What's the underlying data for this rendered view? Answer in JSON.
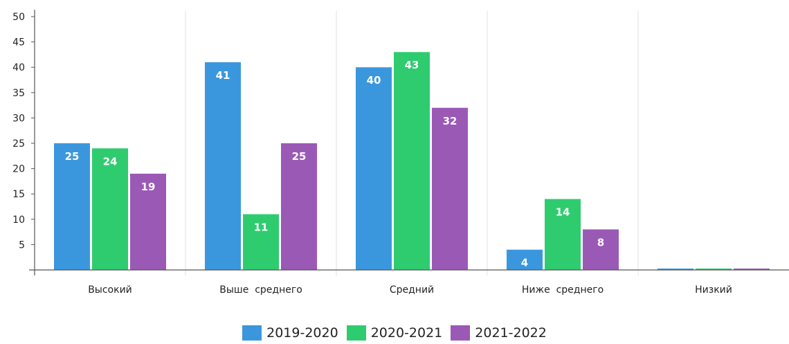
{
  "chart_data": {
    "type": "bar",
    "categories": [
      "Высокий",
      "Выше  среднего",
      "Средний",
      "Ниже  среднего",
      "Низкий"
    ],
    "series": [
      {
        "name": "2019-2020",
        "color": "#3a97dd",
        "values": [
          25,
          41,
          40,
          4,
          0
        ]
      },
      {
        "name": "2020-2021",
        "color": "#2ecc6f",
        "values": [
          24,
          11,
          43,
          14,
          0
        ]
      },
      {
        "name": "2021-2022",
        "color": "#9b59b6",
        "values": [
          19,
          25,
          32,
          8,
          0
        ]
      }
    ],
    "ylim": [
      0,
      50
    ],
    "yticks": [
      5,
      10,
      15,
      20,
      25,
      30,
      35,
      40,
      45,
      50
    ],
    "grid": "vertical category separators",
    "legend_position": "bottom-center",
    "title": "",
    "xlabel": "",
    "ylabel": ""
  }
}
